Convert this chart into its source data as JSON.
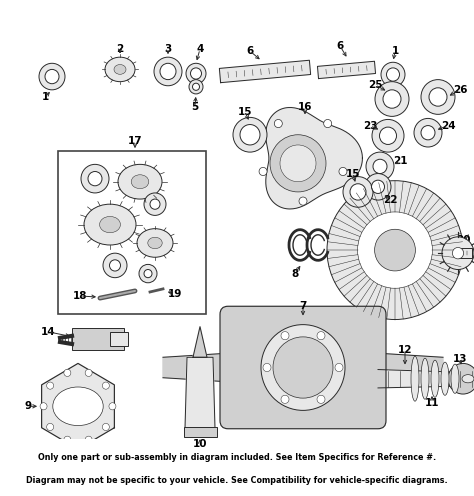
{
  "background_color": "#ffffff",
  "footer_bg": "#e8960a",
  "footer_text_line1": "Only one part or sub-assembly in diagram included. See Item Specifics for Reference #.",
  "footer_text_line2": "Diagram may not be specific to your vehicle. See Compatibility for vehicle-specific diagrams.",
  "footer_font_size": 5.8,
  "footer_text_color": "#000000",
  "lc": "#2a2a2a",
  "lw": 0.7,
  "label_fs": 7.5,
  "label_color": "#000000"
}
